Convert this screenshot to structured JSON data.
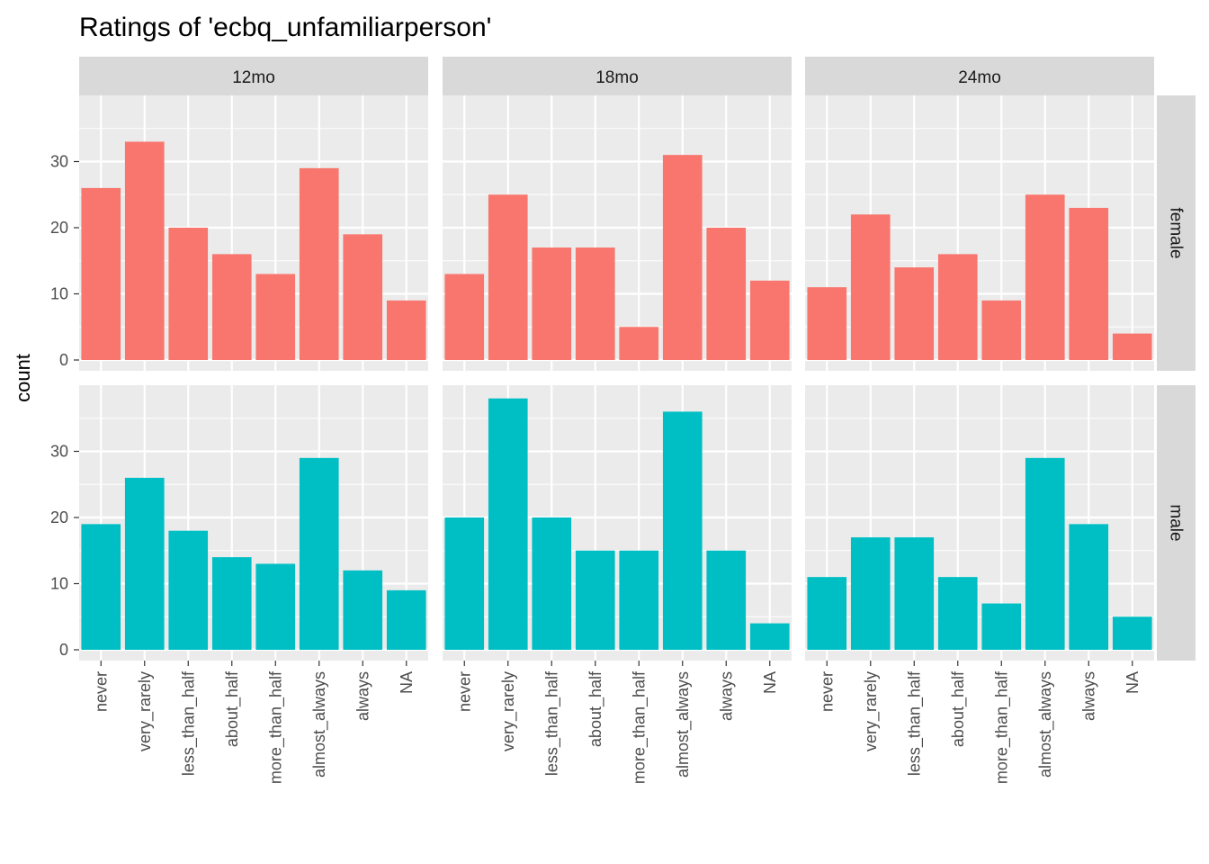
{
  "chart_data": {
    "type": "bar",
    "title": "Ratings of 'ecbq_unfamiliarperson'",
    "xlabel": "",
    "ylabel": "count",
    "categories": [
      "never",
      "very_rarely",
      "less_than_half",
      "about_half",
      "more_than_half",
      "almost_always",
      "always",
      "NA"
    ],
    "yticks": [
      0,
      10,
      20,
      30
    ],
    "ylim": [
      0,
      38
    ],
    "grid": true,
    "legend": "none",
    "facet_columns": [
      "12mo",
      "18mo",
      "24mo"
    ],
    "facet_rows": [
      "female",
      "male"
    ],
    "series": [
      {
        "facet_row": "female",
        "facet_col": "12mo",
        "color": "#F8766D",
        "values": [
          26,
          33,
          20,
          16,
          13,
          29,
          19,
          9
        ]
      },
      {
        "facet_row": "female",
        "facet_col": "18mo",
        "color": "#F8766D",
        "values": [
          13,
          25,
          17,
          17,
          5,
          31,
          20,
          12
        ]
      },
      {
        "facet_row": "female",
        "facet_col": "24mo",
        "color": "#F8766D",
        "values": [
          11,
          22,
          14,
          16,
          9,
          25,
          23,
          4
        ]
      },
      {
        "facet_row": "male",
        "facet_col": "12mo",
        "color": "#00BFC4",
        "values": [
          19,
          26,
          18,
          14,
          13,
          29,
          12,
          9
        ]
      },
      {
        "facet_row": "male",
        "facet_col": "18mo",
        "color": "#00BFC4",
        "values": [
          20,
          38,
          20,
          15,
          15,
          36,
          15,
          4
        ]
      },
      {
        "facet_row": "male",
        "facet_col": "24mo",
        "color": "#00BFC4",
        "values": [
          11,
          17,
          17,
          11,
          7,
          29,
          19,
          5
        ]
      }
    ]
  },
  "colors": {
    "panel_background": "#EBEBEB",
    "strip_background": "#D9D9D9",
    "grid": "#FFFFFF",
    "female": "#F8766D",
    "male": "#00BFC4"
  }
}
